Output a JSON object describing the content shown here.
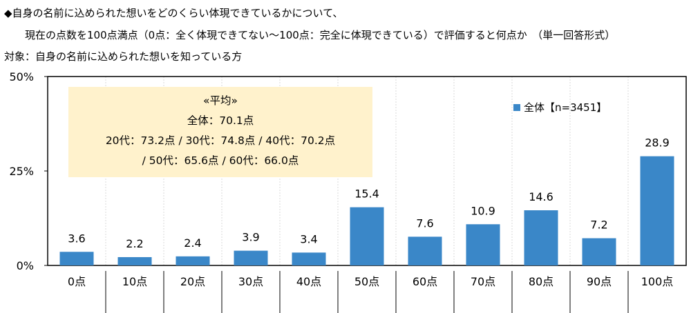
{
  "header": {
    "line1": "◆自身の名前に込められた想いをどのくらい体現できているかについて、",
    "line2": "現在の点数を100点満点（0点：全く体現できてない～100点：完全に体現できている）で評価すると何点か　（単一回答形式）",
    "line3": "対象：自身の名前に込められた想いを知っている方"
  },
  "note": {
    "title": "«平均»",
    "overall": "全体：70.1点",
    "ages1": "20代：73.2点 / 30代：74.8点 / 40代：70.2点",
    "ages2": "/ 50代：65.6点 / 60代：66.0点"
  },
  "chart_data": {
    "type": "bar",
    "categories": [
      "0点",
      "10点",
      "20点",
      "30点",
      "40点",
      "50点",
      "60点",
      "70点",
      "80点",
      "90点",
      "100点"
    ],
    "series": [
      {
        "name": "全体【n=3451】",
        "values": [
          3.6,
          2.2,
          2.4,
          3.9,
          3.4,
          15.4,
          7.6,
          10.9,
          14.6,
          7.2,
          28.9
        ],
        "color": "#3a87c8"
      }
    ],
    "ylim": [
      0,
      50
    ],
    "yticks": [
      "0%",
      "25%",
      "50%"
    ],
    "ytick_values": [
      0,
      25,
      50
    ],
    "legend": "top-right"
  }
}
